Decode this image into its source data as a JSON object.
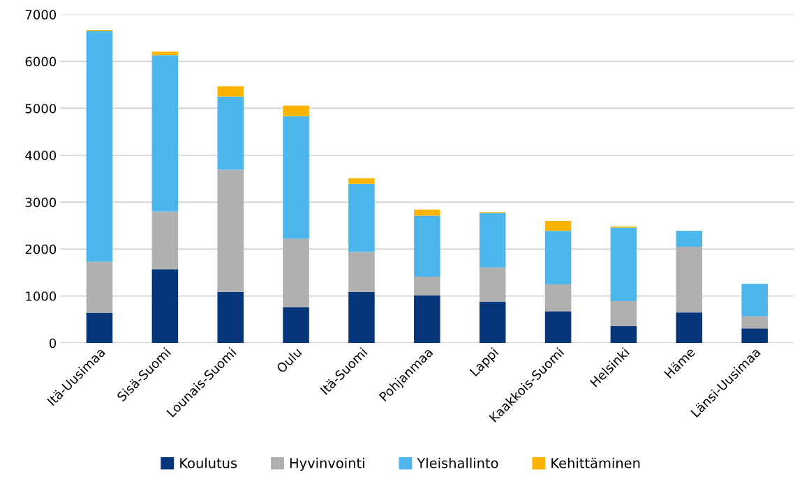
{
  "chart_data": {
    "type": "bar",
    "stacked": true,
    "categories": [
      "Itä-Uusimaa",
      "Sisä-Suomi",
      "Lounais-Suomi",
      "Oulu",
      "Itä-Suomi",
      "Pohjanmaa",
      "Lappi",
      "Kaakkois-Suomi",
      "Helsinki",
      "Häme",
      "Länsi-Uusimaa"
    ],
    "series": [
      {
        "name": "Koulutus",
        "color": "#06357a",
        "values": [
          640,
          1570,
          1090,
          760,
          1090,
          1010,
          880,
          670,
          360,
          650,
          310
        ]
      },
      {
        "name": "Hyvinvointi",
        "color": "#b0b0b0",
        "values": [
          1090,
          1230,
          2600,
          1460,
          850,
          400,
          730,
          580,
          530,
          1400,
          260
        ]
      },
      {
        "name": "Yleishallinto",
        "color": "#4bb5ec",
        "values": [
          4920,
          3330,
          1560,
          2610,
          1450,
          1300,
          1160,
          1140,
          1570,
          340,
          690
        ]
      },
      {
        "name": "Kehittäminen",
        "color": "#fbb500",
        "values": [
          20,
          80,
          220,
          230,
          120,
          130,
          20,
          210,
          20,
          0,
          0
        ]
      }
    ],
    "ylim": [
      0,
      7000
    ],
    "yticks": [
      0,
      1000,
      2000,
      3000,
      4000,
      5000,
      6000,
      7000
    ],
    "grid": "y",
    "legend": "bottom"
  }
}
